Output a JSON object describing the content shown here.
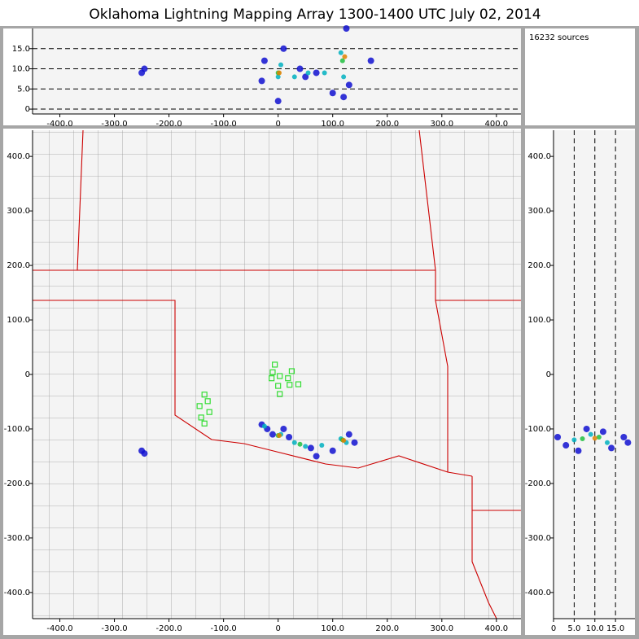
{
  "chart_data": [
    {
      "type": "scatter",
      "title": "Oklahoma Lightning Mapping Array   1300-1400 UTC  July 02, 2014",
      "annotation": "16232 sources",
      "xlim": [
        -450,
        445
      ],
      "ylim": [
        -1.2,
        20
      ],
      "xticks": [
        {
          "value": -400,
          "label": "-400.0"
        },
        {
          "value": -300,
          "label": "-300.0"
        },
        {
          "value": -200,
          "label": "-200.0"
        },
        {
          "value": -100,
          "label": "-100.0"
        },
        0,
        {
          "value": 100,
          "label": "100.0"
        },
        {
          "value": 200,
          "label": "200.0"
        },
        {
          "value": 300,
          "label": "300.0"
        },
        {
          "value": 400,
          "label": "400.0"
        }
      ],
      "yticks": [
        0,
        {
          "value": 5,
          "label": "5.0"
        },
        {
          "value": 10,
          "label": "10.0"
        },
        {
          "value": 15,
          "label": "15.0"
        }
      ],
      "grid": "y",
      "series": [
        {
          "color": "#1010d0",
          "x": [
            -250,
            -245,
            -30,
            -25,
            0,
            10,
            50,
            70,
            100,
            120,
            125,
            130,
            170,
            40
          ],
          "y": [
            9,
            10,
            7,
            12,
            2,
            15,
            8,
            9,
            4,
            3,
            20,
            6,
            12,
            10
          ]
        },
        {
          "color": "#00b0c0",
          "x": [
            0,
            5,
            30,
            55,
            85,
            115,
            120
          ],
          "y": [
            8,
            11,
            8,
            9,
            9,
            14,
            8
          ]
        },
        {
          "color": "#20c040",
          "x": [
            0,
            118
          ],
          "y": [
            9,
            12
          ]
        },
        {
          "color": "#e08000",
          "x": [
            2,
            122
          ],
          "y": [
            9,
            13
          ]
        }
      ]
    },
    {
      "type": "scatter",
      "xlim": [
        -450,
        445
      ],
      "ylim": [
        -448,
        448
      ],
      "xticks": [
        {
          "value": -400,
          "label": "-400.0"
        },
        {
          "value": -300,
          "label": "-300.0"
        },
        {
          "value": -200,
          "label": "-200.0"
        },
        {
          "value": -100,
          "label": "-100.0"
        },
        0,
        {
          "value": 100,
          "label": "100.0"
        },
        {
          "value": 200,
          "label": "200.0"
        },
        {
          "value": 300,
          "label": "300.0"
        },
        {
          "value": 400,
          "label": "400.0"
        }
      ],
      "yticks": [
        {
          "value": -400,
          "label": "-400.0"
        },
        {
          "value": -300,
          "label": "-300.0"
        },
        {
          "value": -200,
          "label": "-200.0"
        },
        {
          "value": -100,
          "label": "-100.0"
        },
        0,
        {
          "value": 100,
          "label": "100.0"
        },
        {
          "value": 200,
          "label": "200.0"
        },
        {
          "value": 300,
          "label": "300.0"
        },
        {
          "value": 400,
          "label": "400.0"
        }
      ],
      "series": [
        {
          "color": "#1010d0",
          "x": [
            -250,
            -245,
            -30,
            -20,
            10,
            60,
            100,
            130,
            140,
            70,
            20,
            -10
          ],
          "y": [
            -140,
            -145,
            -92,
            -100,
            -100,
            -135,
            -140,
            -110,
            -125,
            -150,
            -115,
            -110
          ]
        },
        {
          "color": "#00b0c0",
          "x": [
            -25,
            5,
            30,
            50,
            80,
            115,
            125
          ],
          "y": [
            -95,
            -110,
            -125,
            -132,
            -130,
            -118,
            -125
          ]
        },
        {
          "color": "#20c040",
          "x": [
            0,
            40,
            118
          ],
          "y": [
            -112,
            -128,
            -120
          ]
        },
        {
          "color": "#e08000",
          "x": [
            2,
            120
          ],
          "y": [
            -112,
            -121
          ]
        }
      ],
      "stations": {
        "color": "#33dd33",
        "x": [
          -6,
          -10,
          3,
          -12,
          18,
          25,
          37,
          21,
          0,
          3,
          -135,
          -129,
          -144,
          -126,
          -141,
          -135
        ],
        "y": [
          18,
          4,
          -3,
          -7,
          -7,
          6,
          -18,
          -19,
          -21,
          -36,
          -37,
          -49,
          -58,
          -69,
          -79,
          -90
        ]
      }
    },
    {
      "type": "scatter",
      "xlim": [
        0,
        19.7
      ],
      "ylim": [
        -448,
        448
      ],
      "xticks": [
        0,
        {
          "value": 5,
          "label": "5.0"
        },
        {
          "value": 10,
          "label": "10.0"
        },
        {
          "value": 15,
          "label": "15.0"
        }
      ],
      "yticks": [
        {
          "value": -400,
          "label": "-400.0"
        },
        {
          "value": -300,
          "label": "-300.0"
        },
        {
          "value": -200,
          "label": "-200.0"
        },
        {
          "value": -100,
          "label": "-100.0"
        },
        0,
        {
          "value": 100,
          "label": "100.0"
        },
        {
          "value": 200,
          "label": "200.0"
        },
        {
          "value": 300,
          "label": "300.0"
        },
        {
          "value": 400,
          "label": "400.0"
        }
      ],
      "grid": "x",
      "series": [
        {
          "color": "#1010d0",
          "x": [
            1,
            3,
            8,
            12,
            17,
            18,
            6,
            14
          ],
          "y": [
            -115,
            -130,
            -100,
            -105,
            -115,
            -125,
            -140,
            -135
          ]
        },
        {
          "color": "#00b0c0",
          "x": [
            5,
            9,
            13
          ],
          "y": [
            -120,
            -110,
            -125
          ]
        },
        {
          "color": "#20c040",
          "x": [
            7,
            11
          ],
          "y": [
            -118,
            -115
          ]
        },
        {
          "color": "#e08000",
          "x": [
            10
          ],
          "y": [
            -117
          ]
        }
      ]
    }
  ]
}
